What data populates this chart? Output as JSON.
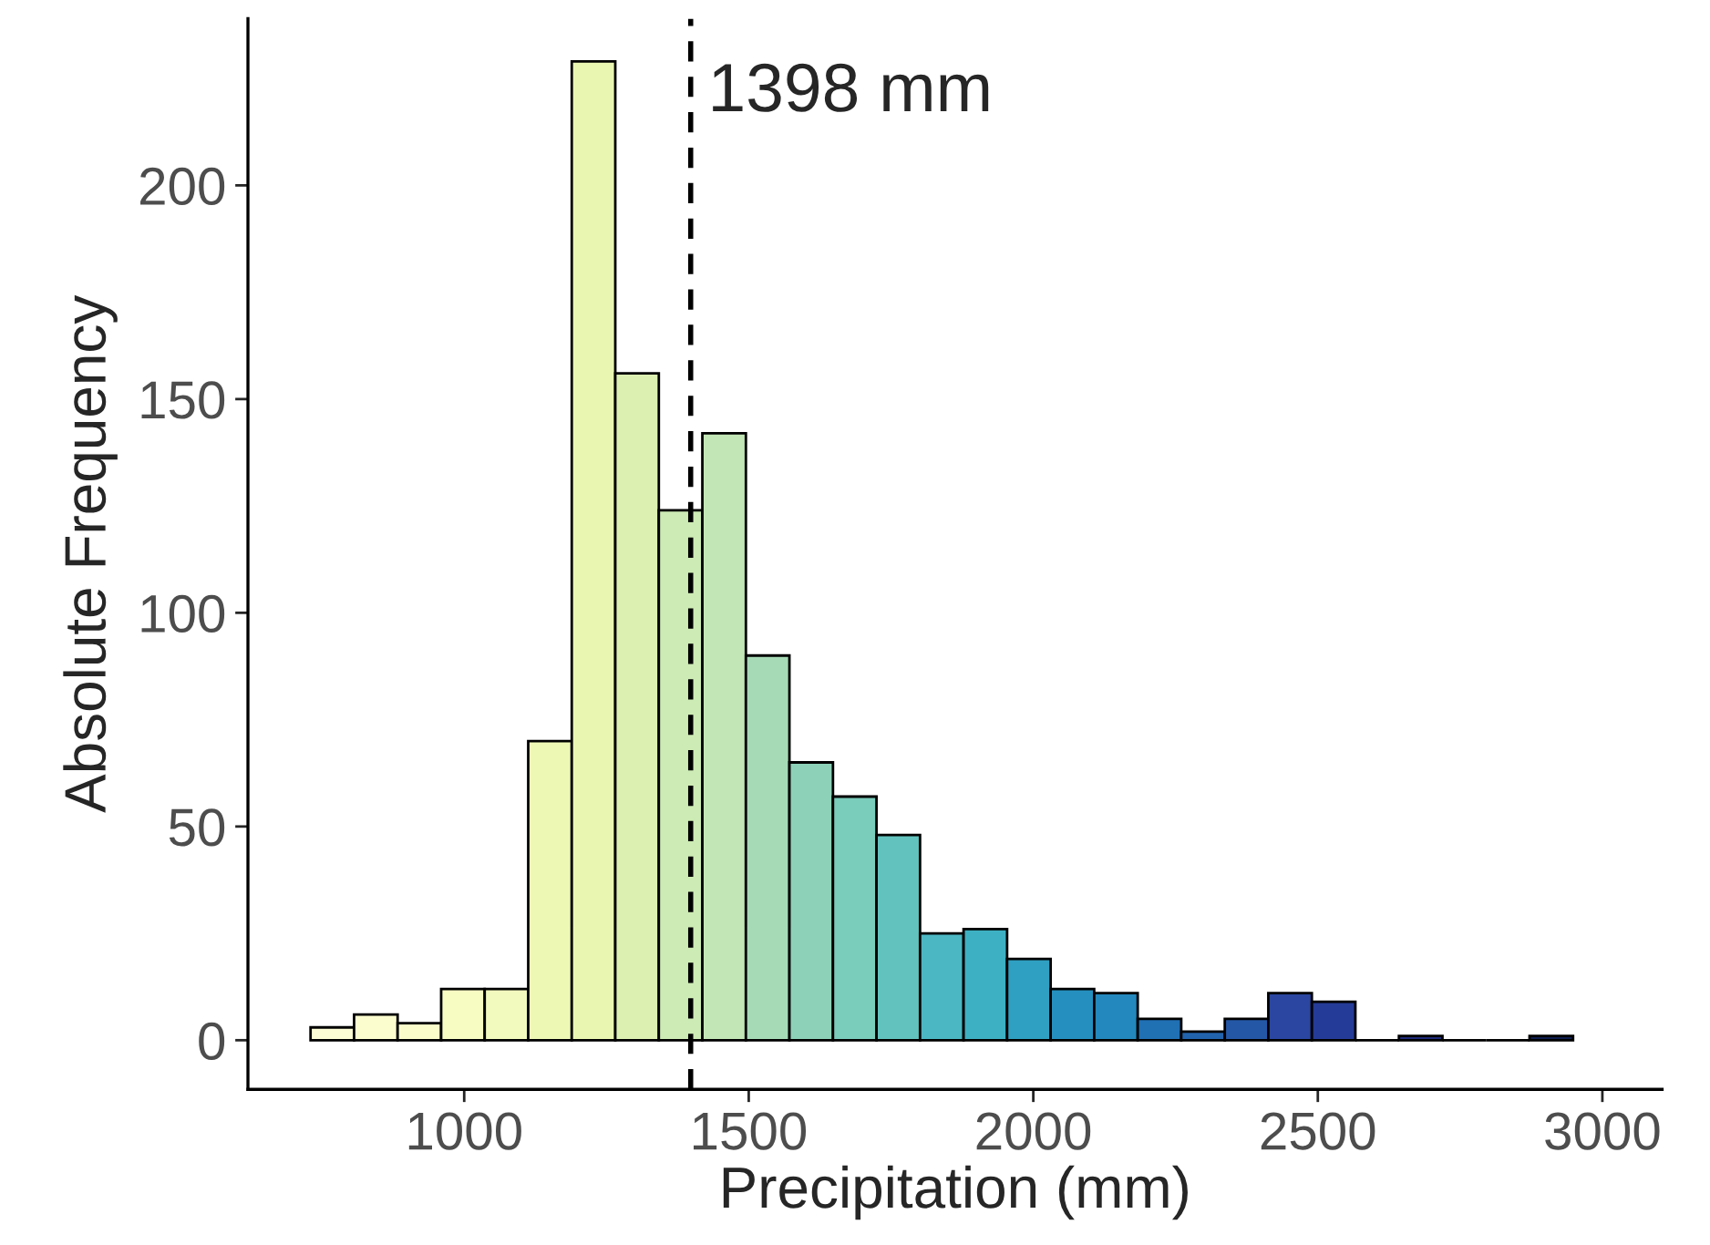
{
  "chart_data": {
    "type": "histogram",
    "xlabel": "Precipitation (mm)",
    "ylabel": "Absolute Frequency",
    "bins": [
      730,
      806.5,
      883,
      959.5,
      1036,
      1112.5,
      1189,
      1265.5,
      1342,
      1418.5,
      1495,
      1571.5,
      1648,
      1724.5,
      1801,
      1877.5,
      1954,
      2030.5,
      2107,
      2183.5,
      2260,
      2336.5,
      2413,
      2489.5,
      2566,
      2642.5,
      2719,
      2795.5,
      2872,
      2948.5
    ],
    "values": [
      3,
      6,
      4,
      12,
      12,
      70,
      229,
      156,
      124,
      142,
      90,
      65,
      57,
      48,
      25,
      26,
      19,
      12,
      11,
      5,
      2,
      5,
      11,
      9,
      0,
      1,
      0,
      0,
      1
    ],
    "colors": [
      "#fdfdd5",
      "#fcfdcf",
      "#fafdc9",
      "#f7fcc3",
      "#f3fabd",
      "#eef8b5",
      "#e9f6b1",
      "#dcf0b2",
      "#cdebb4",
      "#c2e6b5",
      "#a6dab6",
      "#8dd1b8",
      "#7accbb",
      "#62c3be",
      "#4bb7c2",
      "#3eb0c3",
      "#2fa0c1",
      "#2590c0",
      "#2388bd",
      "#2070b4",
      "#2163ad",
      "#2457a6",
      "#2a46a0",
      "#253b98",
      "#000000",
      "#1e2a7a",
      "#000000",
      "#000000",
      "#0e1d4f"
    ],
    "xlim": [
      620,
      3105
    ],
    "xticks": [
      1000,
      1500,
      2000,
      2500,
      3000
    ],
    "ylim": [
      -11.5,
      239
    ],
    "yticks": [
      0,
      50,
      100,
      150,
      200
    ],
    "ref_lines": [
      {
        "axis": "x",
        "value": 1398,
        "label": "1398 mm",
        "color": "#000000",
        "line_style": "dashed"
      }
    ],
    "grid": false
  }
}
